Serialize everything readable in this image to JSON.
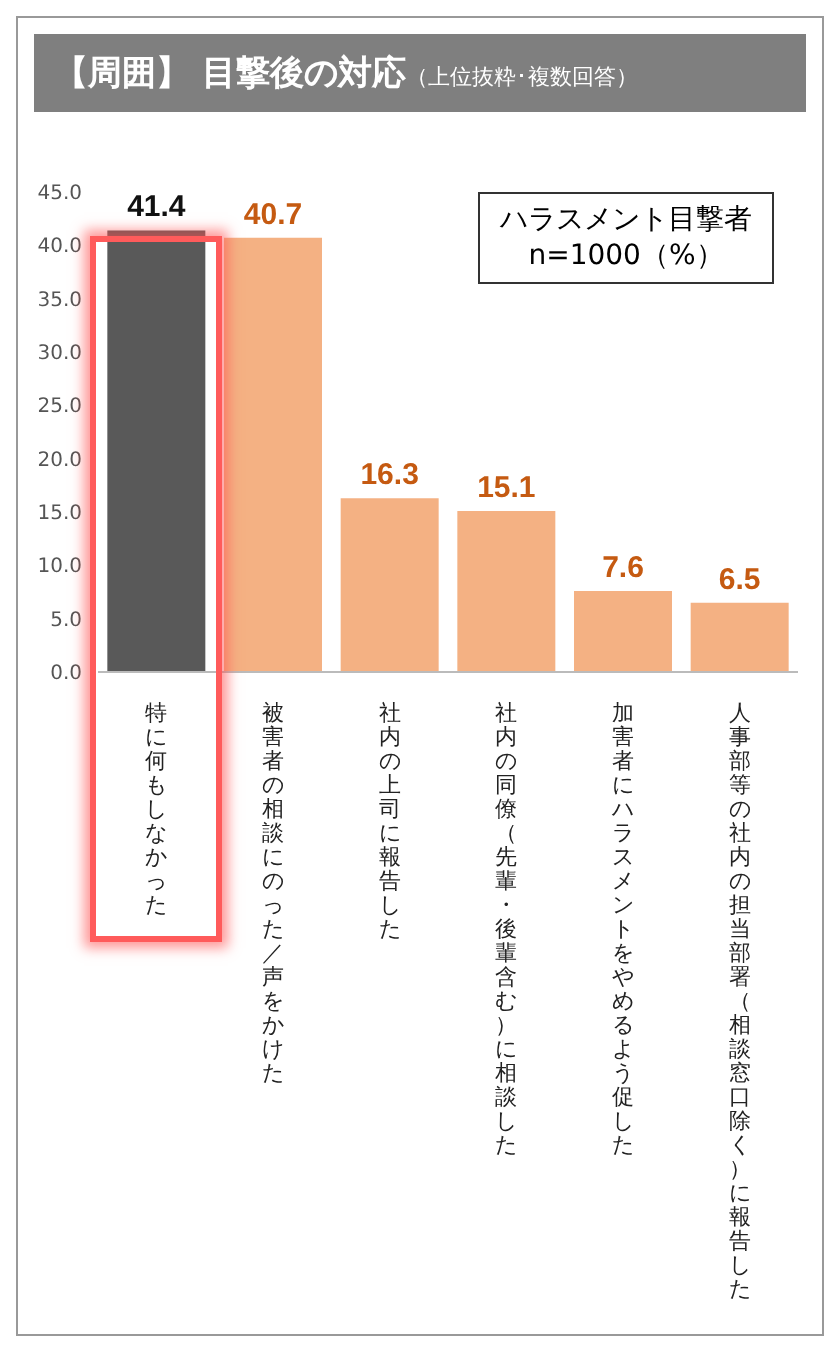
{
  "chart_data": {
    "type": "bar",
    "title": "【周囲】 目撃後の対応",
    "subtitle": "（上位抜粋･複数回答）",
    "annotations": [
      "ハラスメント目撃者\nn=1000（%）"
    ],
    "categories": [
      "特に何もしなかった",
      "被害者の相談にのった／声をかけた",
      "社内の上司に報告した",
      "社内の同僚（先輩・後輩含む）に相談した",
      "加害者にハラスメントをやめるよう促した",
      "人事部等の社内の担当部署（相談窓口除く）に報告した"
    ],
    "values": [
      41.4,
      40.7,
      16.3,
      15.1,
      7.6,
      6.5
    ],
    "colors": [
      "#595959",
      "#f4b183",
      "#f4b183",
      "#f4b183",
      "#f4b183",
      "#f4b183"
    ],
    "ylim": [
      0,
      45
    ],
    "yticks": [
      {
        "value": 0,
        "label": "0.0"
      },
      {
        "value": 5,
        "label": "5.0"
      },
      {
        "value": 10,
        "label": "10.0"
      },
      {
        "value": 15,
        "label": "15.0"
      },
      {
        "value": 20,
        "label": "20.0"
      },
      {
        "value": 25,
        "label": "25.0"
      },
      {
        "value": 30,
        "label": "30.0"
      },
      {
        "value": 35,
        "label": "35.0"
      },
      {
        "value": 40,
        "label": "40.0"
      },
      {
        "value": 45,
        "label": "45.0"
      }
    ],
    "data_labels": true,
    "grid": false,
    "legend": false
  }
}
